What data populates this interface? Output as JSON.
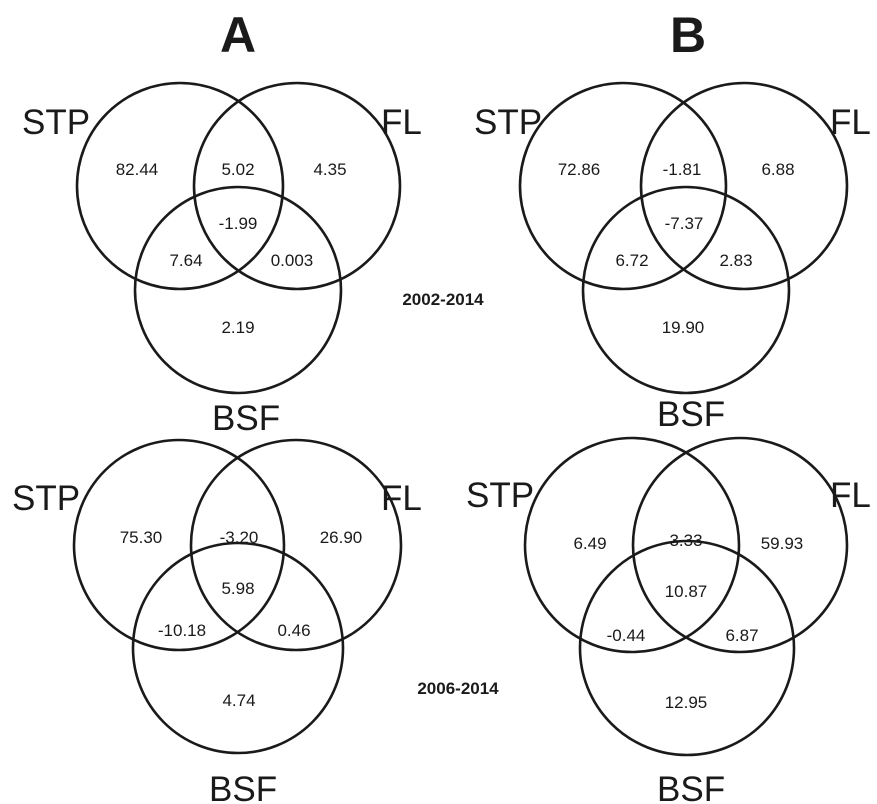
{
  "panels": {
    "A": "A",
    "B": "B"
  },
  "periods": {
    "top": "2002-2014",
    "bottom": "2006-2014"
  },
  "set_labels": {
    "stp": "STP",
    "fl": "FL",
    "bsf": "BSF"
  },
  "diagrams": {
    "a_top": {
      "stp_only": "82.44",
      "stp_fl": "5.02",
      "fl_only": "4.35",
      "all_three": "-1.99",
      "stp_bsf": "7.64",
      "fl_bsf": "0.003",
      "bsf_only": "2.19"
    },
    "b_top": {
      "stp_only": "72.86",
      "stp_fl": "-1.81",
      "fl_only": "6.88",
      "all_three": "-7.37",
      "stp_bsf": "6.72",
      "fl_bsf": "2.83",
      "bsf_only": "19.90"
    },
    "a_bottom": {
      "stp_only": "75.30",
      "stp_fl": "-3.20",
      "fl_only": "26.90",
      "all_three": "5.98",
      "stp_bsf": "-10.18",
      "fl_bsf": "0.46",
      "bsf_only": "4.74"
    },
    "b_bottom": {
      "stp_only": "6.49",
      "stp_fl": "3.33",
      "fl_only": "59.93",
      "all_three": "10.87",
      "stp_bsf": "-0.44",
      "fl_bsf": "6.87",
      "bsf_only": "12.95"
    }
  }
}
